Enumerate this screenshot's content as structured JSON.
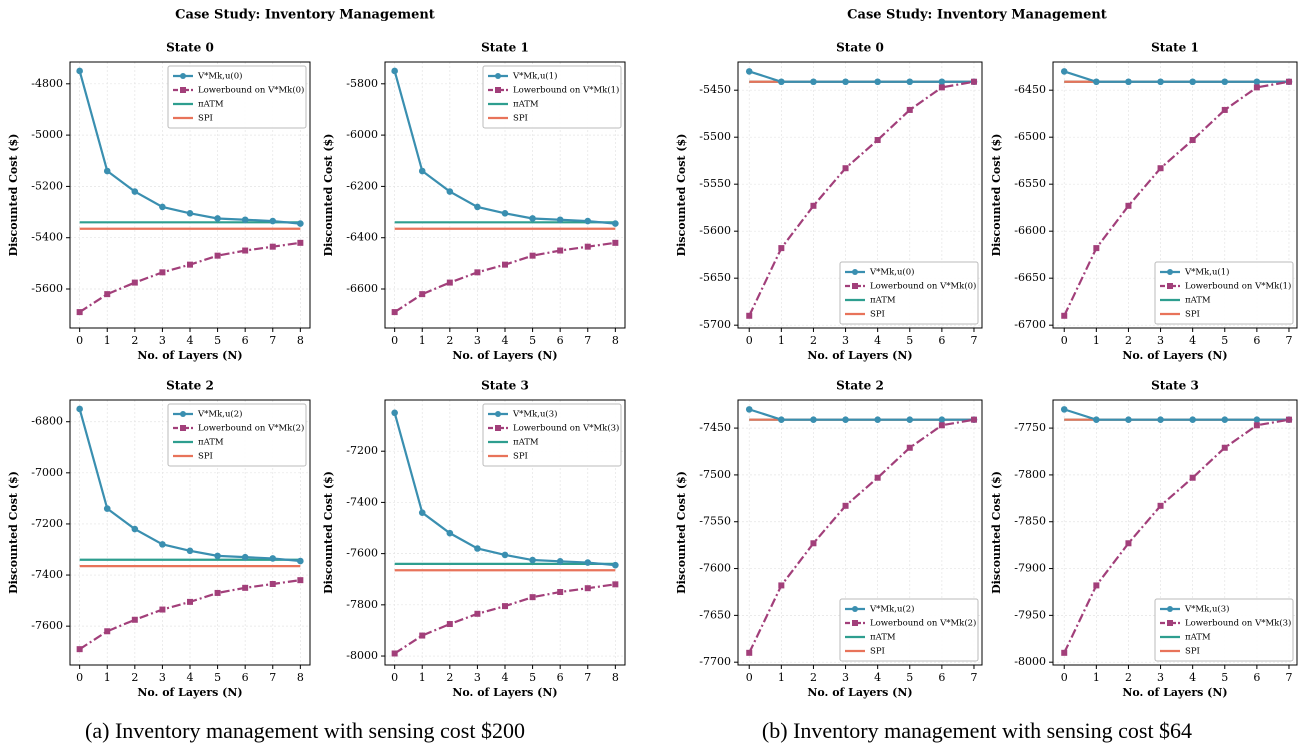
{
  "panels": [
    {
      "title": "Case Study: Inventory Management",
      "caption": "(a) Inventory management with sensing cost $200"
    },
    {
      "title": "Case Study: Inventory Management",
      "caption": "(b) Inventory management with sensing cost $64"
    }
  ],
  "chart_data": [
    {
      "type": "line",
      "title": "State 0",
      "xlabel": "No. of Layers (N)",
      "ylabel": "Discounted Cost ($)",
      "grid": true,
      "legend": "upper right",
      "x": [
        0,
        1,
        2,
        3,
        4,
        5,
        6,
        7,
        8
      ],
      "xlim": [
        -0.35,
        8.35
      ],
      "xticks": [
        0,
        1,
        2,
        3,
        4,
        5,
        6,
        7,
        8
      ],
      "ylim": [
        -5752,
        -4715
      ],
      "yticks": [
        -5600,
        -5400,
        -5200,
        -5000,
        -4800
      ],
      "series": [
        {
          "name": "V*Mk,u(0)",
          "color": "#3a8fb0",
          "linestyle": "solid",
          "marker": "circle",
          "values": [
            -4750,
            -5140,
            -5220,
            -5280,
            -5305,
            -5325,
            -5330,
            -5335,
            -5345
          ]
        },
        {
          "name": "Lowerbound on V*Mk(0)",
          "color": "#a23f7a",
          "linestyle": "dashdot",
          "marker": "square",
          "values": [
            -5690,
            -5620,
            -5575,
            -5535,
            -5505,
            -5470,
            -5450,
            -5435,
            -5420
          ]
        },
        {
          "name": "πATM",
          "color": "#2e9e8f",
          "linestyle": "solid",
          "values": [
            -5340,
            -5340,
            -5340,
            -5340,
            -5340,
            -5340,
            -5340,
            -5340,
            -5340
          ]
        },
        {
          "name": "SPI",
          "color": "#e8735a",
          "linestyle": "solid",
          "values": [
            -5365,
            -5365,
            -5365,
            -5365,
            -5365,
            -5365,
            -5365,
            -5365,
            -5365
          ]
        }
      ]
    },
    {
      "type": "line",
      "title": "State 1",
      "xlabel": "No. of Layers (N)",
      "ylabel": "Discounted Cost ($)",
      "grid": true,
      "legend": "upper right",
      "x": [
        0,
        1,
        2,
        3,
        4,
        5,
        6,
        7,
        8
      ],
      "xlim": [
        -0.35,
        8.35
      ],
      "xticks": [
        0,
        1,
        2,
        3,
        4,
        5,
        6,
        7,
        8
      ],
      "ylim": [
        -6752,
        -5715
      ],
      "yticks": [
        -6600,
        -6400,
        -6200,
        -6000,
        -5800
      ],
      "series": [
        {
          "name": "V*Mk,u(1)",
          "color": "#3a8fb0",
          "linestyle": "solid",
          "marker": "circle",
          "values": [
            -5750,
            -6140,
            -6220,
            -6280,
            -6305,
            -6325,
            -6330,
            -6335,
            -6345
          ]
        },
        {
          "name": "Lowerbound on V*Mk(1)",
          "color": "#a23f7a",
          "linestyle": "dashdot",
          "marker": "square",
          "values": [
            -6690,
            -6620,
            -6575,
            -6535,
            -6505,
            -6470,
            -6450,
            -6435,
            -6420
          ]
        },
        {
          "name": "πATM",
          "color": "#2e9e8f",
          "linestyle": "solid",
          "values": [
            -6340,
            -6340,
            -6340,
            -6340,
            -6340,
            -6340,
            -6340,
            -6340,
            -6340
          ]
        },
        {
          "name": "SPI",
          "color": "#e8735a",
          "linestyle": "solid",
          "values": [
            -6365,
            -6365,
            -6365,
            -6365,
            -6365,
            -6365,
            -6365,
            -6365,
            -6365
          ]
        }
      ]
    },
    {
      "type": "line",
      "title": "State 2",
      "xlabel": "No. of Layers (N)",
      "ylabel": "Discounted Cost ($)",
      "grid": true,
      "legend": "upper right",
      "x": [
        0,
        1,
        2,
        3,
        4,
        5,
        6,
        7,
        8
      ],
      "xlim": [
        -0.35,
        8.35
      ],
      "xticks": [
        0,
        1,
        2,
        3,
        4,
        5,
        6,
        7,
        8
      ],
      "ylim": [
        -7752,
        -6715
      ],
      "yticks": [
        -7600,
        -7400,
        -7200,
        -7000,
        -6800
      ],
      "series": [
        {
          "name": "V*Mk,u(2)",
          "color": "#3a8fb0",
          "linestyle": "solid",
          "marker": "circle",
          "values": [
            -6750,
            -7140,
            -7220,
            -7280,
            -7305,
            -7325,
            -7330,
            -7335,
            -7345
          ]
        },
        {
          "name": "Lowerbound on V*Mk(2)",
          "color": "#a23f7a",
          "linestyle": "dashdot",
          "marker": "square",
          "values": [
            -7690,
            -7620,
            -7575,
            -7535,
            -7505,
            -7470,
            -7450,
            -7435,
            -7420
          ]
        },
        {
          "name": "πATM",
          "color": "#2e9e8f",
          "linestyle": "solid",
          "values": [
            -7340,
            -7340,
            -7340,
            -7340,
            -7340,
            -7340,
            -7340,
            -7340,
            -7340
          ]
        },
        {
          "name": "SPI",
          "color": "#e8735a",
          "linestyle": "solid",
          "values": [
            -7365,
            -7365,
            -7365,
            -7365,
            -7365,
            -7365,
            -7365,
            -7365,
            -7365
          ]
        }
      ]
    },
    {
      "type": "line",
      "title": "State 3",
      "xlabel": "No. of Layers (N)",
      "ylabel": "Discounted Cost ($)",
      "grid": true,
      "legend": "upper right",
      "x": [
        0,
        1,
        2,
        3,
        4,
        5,
        6,
        7,
        8
      ],
      "xlim": [
        -0.35,
        8.35
      ],
      "xticks": [
        0,
        1,
        2,
        3,
        4,
        5,
        6,
        7,
        8
      ],
      "ylim": [
        -8035,
        -7000
      ],
      "yticks": [
        -8000,
        -7800,
        -7600,
        -7400,
        -7200
      ],
      "series": [
        {
          "name": "V*Mk,u(3)",
          "color": "#3a8fb0",
          "linestyle": "solid",
          "marker": "circle",
          "values": [
            -7050,
            -7440,
            -7520,
            -7580,
            -7605,
            -7625,
            -7630,
            -7635,
            -7645
          ]
        },
        {
          "name": "Lowerbound on V*Mk(3)",
          "color": "#a23f7a",
          "linestyle": "dashdot",
          "marker": "square",
          "values": [
            -7990,
            -7920,
            -7875,
            -7835,
            -7805,
            -7770,
            -7750,
            -7735,
            -7720
          ]
        },
        {
          "name": "πATM",
          "color": "#2e9e8f",
          "linestyle": "solid",
          "values": [
            -7640,
            -7640,
            -7640,
            -7640,
            -7640,
            -7640,
            -7640,
            -7640,
            -7640
          ]
        },
        {
          "name": "SPI",
          "color": "#e8735a",
          "linestyle": "solid",
          "values": [
            -7665,
            -7665,
            -7665,
            -7665,
            -7665,
            -7665,
            -7665,
            -7665,
            -7665
          ]
        }
      ]
    },
    {
      "type": "line",
      "title": "State 0",
      "xlabel": "No. of Layers (N)",
      "ylabel": "Discounted Cost ($)",
      "grid": true,
      "legend": "lower right",
      "x": [
        0,
        1,
        2,
        3,
        4,
        5,
        6,
        7
      ],
      "xlim": [
        -0.35,
        7.25
      ],
      "xticks": [
        0,
        1,
        2,
        3,
        4,
        5,
        6,
        7
      ],
      "ylim": [
        -5703,
        -5420
      ],
      "yticks": [
        -5700,
        -5650,
        -5600,
        -5550,
        -5500,
        -5450
      ],
      "series": [
        {
          "name": "V*Mk,u(0)",
          "color": "#3a8fb0",
          "linestyle": "solid",
          "marker": "circle",
          "values": [
            -5430,
            -5441,
            -5441,
            -5441,
            -5441,
            -5441,
            -5441,
            -5441
          ]
        },
        {
          "name": "Lowerbound on V*Mk(0)",
          "color": "#a23f7a",
          "linestyle": "dashdot",
          "marker": "square",
          "values": [
            -5690,
            -5618,
            -5573,
            -5533,
            -5503,
            -5471,
            -5447,
            -5441
          ]
        },
        {
          "name": "πATM",
          "color": "#2e9e8f",
          "linestyle": "solid",
          "values": [
            -5441,
            -5441,
            -5441,
            -5441,
            -5441,
            -5441,
            -5441,
            -5441
          ]
        },
        {
          "name": "SPI",
          "color": "#e8735a",
          "linestyle": "solid",
          "values": [
            -5441,
            -5441,
            -5441,
            -5441,
            -5441,
            -5441,
            -5441,
            -5441
          ]
        }
      ]
    },
    {
      "type": "line",
      "title": "State 1",
      "xlabel": "No. of Layers (N)",
      "ylabel": "Discounted Cost ($)",
      "grid": true,
      "legend": "lower right",
      "x": [
        0,
        1,
        2,
        3,
        4,
        5,
        6,
        7
      ],
      "xlim": [
        -0.35,
        7.25
      ],
      "xticks": [
        0,
        1,
        2,
        3,
        4,
        5,
        6,
        7
      ],
      "ylim": [
        -6703,
        -6420
      ],
      "yticks": [
        -6700,
        -6650,
        -6600,
        -6550,
        -6500,
        -6450
      ],
      "series": [
        {
          "name": "V*Mk,u(1)",
          "color": "#3a8fb0",
          "linestyle": "solid",
          "marker": "circle",
          "values": [
            -6430,
            -6441,
            -6441,
            -6441,
            -6441,
            -6441,
            -6441,
            -6441
          ]
        },
        {
          "name": "Lowerbound on V*Mk(1)",
          "color": "#a23f7a",
          "linestyle": "dashdot",
          "marker": "square",
          "values": [
            -6690,
            -6618,
            -6573,
            -6533,
            -6503,
            -6471,
            -6447,
            -6441
          ]
        },
        {
          "name": "πATM",
          "color": "#2e9e8f",
          "linestyle": "solid",
          "values": [
            -6441,
            -6441,
            -6441,
            -6441,
            -6441,
            -6441,
            -6441,
            -6441
          ]
        },
        {
          "name": "SPI",
          "color": "#e8735a",
          "linestyle": "solid",
          "values": [
            -6441,
            -6441,
            -6441,
            -6441,
            -6441,
            -6441,
            -6441,
            -6441
          ]
        }
      ]
    },
    {
      "type": "line",
      "title": "State 2",
      "xlabel": "No. of Layers (N)",
      "ylabel": "Discounted Cost ($)",
      "grid": true,
      "legend": "lower right",
      "x": [
        0,
        1,
        2,
        3,
        4,
        5,
        6,
        7
      ],
      "xlim": [
        -0.35,
        7.25
      ],
      "xticks": [
        0,
        1,
        2,
        3,
        4,
        5,
        6,
        7
      ],
      "ylim": [
        -7703,
        -7420
      ],
      "yticks": [
        -7700,
        -7650,
        -7600,
        -7550,
        -7500,
        -7450
      ],
      "series": [
        {
          "name": "V*Mk,u(2)",
          "color": "#3a8fb0",
          "linestyle": "solid",
          "marker": "circle",
          "values": [
            -7430,
            -7441,
            -7441,
            -7441,
            -7441,
            -7441,
            -7441,
            -7441
          ]
        },
        {
          "name": "Lowerbound on V*Mk(2)",
          "color": "#a23f7a",
          "linestyle": "dashdot",
          "marker": "square",
          "values": [
            -7690,
            -7618,
            -7573,
            -7533,
            -7503,
            -7471,
            -7447,
            -7441
          ]
        },
        {
          "name": "πATM",
          "color": "#2e9e8f",
          "linestyle": "solid",
          "values": [
            -7441,
            -7441,
            -7441,
            -7441,
            -7441,
            -7441,
            -7441,
            -7441
          ]
        },
        {
          "name": "SPI",
          "color": "#e8735a",
          "linestyle": "solid",
          "values": [
            -7441,
            -7441,
            -7441,
            -7441,
            -7441,
            -7441,
            -7441,
            -7441
          ]
        }
      ]
    },
    {
      "type": "line",
      "title": "State 3",
      "xlabel": "No. of Layers (N)",
      "ylabel": "Discounted Cost ($)",
      "grid": true,
      "legend": "lower right",
      "x": [
        0,
        1,
        2,
        3,
        4,
        5,
        6,
        7
      ],
      "xlim": [
        -0.35,
        7.25
      ],
      "xticks": [
        0,
        1,
        2,
        3,
        4,
        5,
        6,
        7
      ],
      "ylim": [
        -8003,
        -7720
      ],
      "yticks": [
        -8000,
        -7950,
        -7900,
        -7850,
        -7800,
        -7750
      ],
      "series": [
        {
          "name": "V*Mk,u(3)",
          "color": "#3a8fb0",
          "linestyle": "solid",
          "marker": "circle",
          "values": [
            -7730,
            -7741,
            -7741,
            -7741,
            -7741,
            -7741,
            -7741,
            -7741
          ]
        },
        {
          "name": "Lowerbound on V*Mk(3)",
          "color": "#a23f7a",
          "linestyle": "dashdot",
          "marker": "square",
          "values": [
            -7990,
            -7918,
            -7873,
            -7833,
            -7803,
            -7771,
            -7747,
            -7741
          ]
        },
        {
          "name": "πATM",
          "color": "#2e9e8f",
          "linestyle": "solid",
          "values": [
            -7741,
            -7741,
            -7741,
            -7741,
            -7741,
            -7741,
            -7741,
            -7741
          ]
        },
        {
          "name": "SPI",
          "color": "#e8735a",
          "linestyle": "solid",
          "values": [
            -7741,
            -7741,
            -7741,
            -7741,
            -7741,
            -7741,
            -7741,
            -7741
          ]
        }
      ]
    }
  ]
}
